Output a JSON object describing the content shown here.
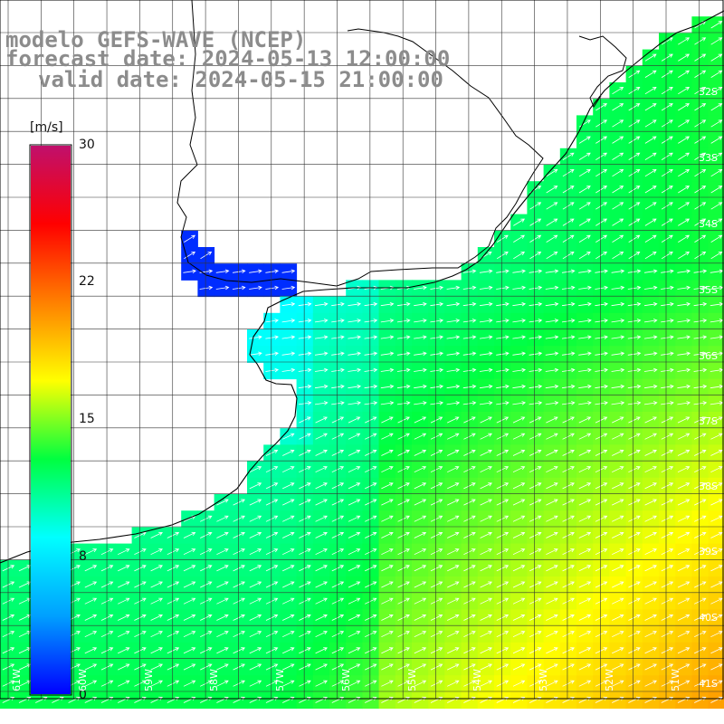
{
  "title": {
    "model": "modelo GEFS-WAVE (NCEP)",
    "forecast": "forecast date: 2024-05-13 12:00:00",
    "valid": "valid date: 2024-05-15 21:00:00"
  },
  "colorbar": {
    "unit": "[m/s]",
    "ticks": [
      "30",
      "22",
      "15",
      "8",
      "0"
    ],
    "min": 0,
    "max": 30,
    "stops": [
      "#0000ff",
      "#00a0ff",
      "#00ffff",
      "#00ff40",
      "#ffff00",
      "#ff8000",
      "#ff0000",
      "#c0106c"
    ]
  },
  "lat_labels": [
    "32S",
    "33S",
    "34S",
    "35S",
    "36S",
    "37S",
    "38S",
    "39S",
    "40S",
    "41S"
  ],
  "lon_labels": [
    "61W",
    "60W",
    "59W",
    "58W",
    "57W",
    "56W",
    "55W",
    "54W",
    "53W",
    "52W",
    "51W"
  ],
  "colors": {
    "land": "#ffffff",
    "coast": "#000000",
    "grid": "#333333",
    "text": "#8c8c8c",
    "arrow": "#ffffff"
  }
}
